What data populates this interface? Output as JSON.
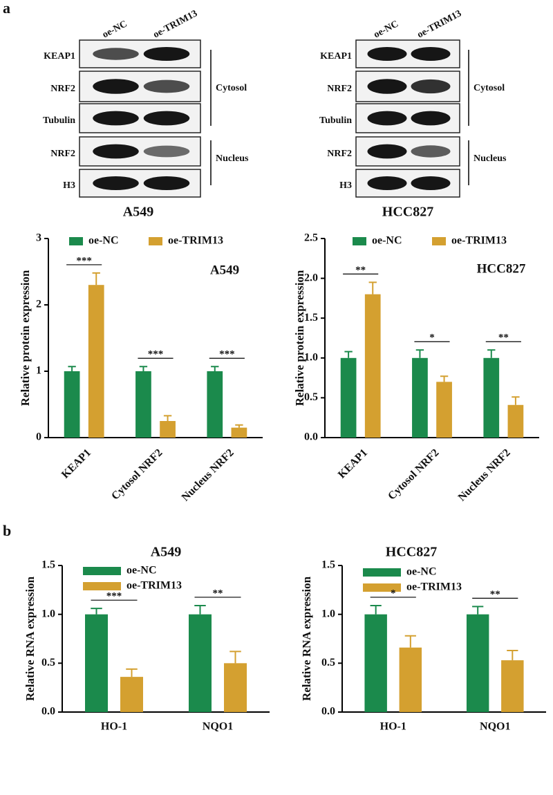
{
  "panel_labels": [
    "a",
    "b"
  ],
  "blots": [
    {
      "title": "A549",
      "lanes": [
        "oe-NC",
        "oe-TRIM13"
      ],
      "rows": [
        "KEAP1",
        "NRF2",
        "Tubulin",
        "NRF2",
        "H3"
      ],
      "groups": [
        "Cytosol",
        "Nucleus"
      ]
    },
    {
      "title": "HCC827",
      "lanes": [
        "oe-NC",
        "oe-TRIM13"
      ],
      "rows": [
        "KEAP1",
        "NRF2",
        "Tubulin",
        "NRF2",
        "H3"
      ],
      "groups": [
        "Cytosol",
        "Nucleus"
      ]
    }
  ],
  "chart_data": [
    {
      "type": "bar",
      "annotation": "A549",
      "y_label": "Relative protein expression",
      "categories": [
        "KEAP1",
        "Cytosol NRF2",
        "Nucleus NRF2"
      ],
      "series": [
        {
          "name": "oe-NC",
          "color": "#1b8a4c",
          "values": [
            1,
            1,
            1
          ],
          "errors": [
            0.07,
            0.07,
            0.07
          ]
        },
        {
          "name": "oe-TRIM13",
          "color": "#d4a030",
          "values": [
            2.3,
            0.25,
            0.15
          ],
          "errors": [
            0.18,
            0.08,
            0.04
          ]
        }
      ],
      "significance": [
        "***",
        "***",
        "***"
      ],
      "ylim": [
        0,
        3
      ],
      "yticks": [
        0,
        1,
        2,
        3
      ],
      "legend": "top"
    },
    {
      "type": "bar",
      "annotation": "HCC827",
      "y_label": "Relative protein expression",
      "categories": [
        "KEAP1",
        "Cytosol NRF2",
        "Nucleus NRF2"
      ],
      "series": [
        {
          "name": "oe-NC",
          "color": "#1b8a4c",
          "values": [
            1,
            1,
            1
          ],
          "errors": [
            0.08,
            0.1,
            0.1
          ]
        },
        {
          "name": "oe-TRIM13",
          "color": "#d4a030",
          "values": [
            1.8,
            0.7,
            0.41
          ],
          "errors": [
            0.15,
            0.07,
            0.1
          ]
        }
      ],
      "significance": [
        "**",
        "*",
        "**"
      ],
      "ylim": [
        0,
        2.5
      ],
      "yticks": [
        {
          "value": 0,
          "label": "0.0"
        },
        0.5,
        {
          "value": 1,
          "label": "1.0"
        },
        1.5,
        {
          "value": 2,
          "label": "2.0"
        },
        2.5
      ],
      "legend": "top"
    },
    {
      "type": "bar",
      "title": "A549",
      "y_label": "Relative RNA expression",
      "categories": [
        "HO-1",
        "NQO1"
      ],
      "series": [
        {
          "name": "oe-NC",
          "color": "#1b8a4c",
          "values": [
            1,
            1
          ],
          "errors": [
            0.06,
            0.09
          ]
        },
        {
          "name": "oe-TRIM13",
          "color": "#d4a030",
          "values": [
            0.36,
            0.5
          ],
          "errors": [
            0.08,
            0.12
          ]
        }
      ],
      "significance": [
        "***",
        "**"
      ],
      "ylim": [
        0,
        1.5
      ],
      "yticks": [
        {
          "value": 0,
          "label": "0.0"
        },
        0.5,
        {
          "value": 1,
          "label": "1.0"
        },
        1.5
      ],
      "legend": "upper left"
    },
    {
      "type": "bar",
      "title": "HCC827",
      "y_label": "Relative RNA expression",
      "categories": [
        "HO-1",
        "NQO1"
      ],
      "series": [
        {
          "name": "oe-NC",
          "color": "#1b8a4c",
          "values": [
            1,
            1
          ],
          "errors": [
            0.09,
            0.08
          ]
        },
        {
          "name": "oe-TRIM13",
          "color": "#d4a030",
          "values": [
            0.66,
            0.53
          ],
          "errors": [
            0.12,
            0.1
          ]
        }
      ],
      "significance": [
        "*",
        "**"
      ],
      "ylim": [
        0,
        1.5
      ],
      "yticks": [
        {
          "value": 0,
          "label": "0.0"
        },
        0.5,
        {
          "value": 1,
          "label": "1.0"
        },
        1.5
      ],
      "legend": "upper left"
    }
  ]
}
